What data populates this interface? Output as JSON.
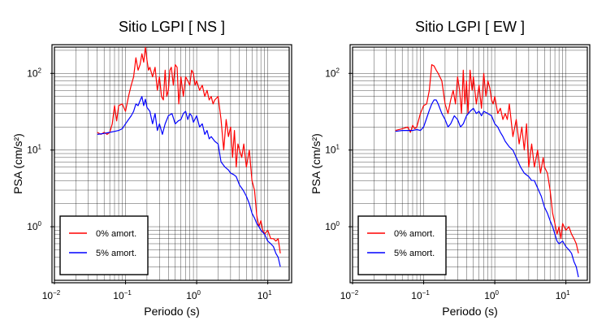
{
  "chart_data": [
    {
      "type": "line",
      "title": "Sitio LGPI [ NS ]",
      "xlabel": "Periodo (s)",
      "ylabel": "PSA (cm/s²)",
      "x_scale": "log",
      "y_scale": "log",
      "xlim": [
        0.01,
        20
      ],
      "ylim": [
        0.2,
        220
      ],
      "x_ticks": [
        {
          "label": "10",
          "exp": "−2"
        },
        {
          "label": "10",
          "exp": "−1"
        },
        {
          "label": "10",
          "exp": "0"
        },
        {
          "label": "10",
          "exp": "1"
        }
      ],
      "y_ticks": [
        {
          "label": "10",
          "exp": "0"
        },
        {
          "label": "10",
          "exp": "1"
        },
        {
          "label": "10",
          "exp": "2"
        }
      ],
      "grid": true,
      "legend_position": "bottom-left",
      "series": [
        {
          "name": "0% amort.",
          "color": "#ff0000",
          "x": [
            0.04,
            0.045,
            0.05,
            0.055,
            0.06,
            0.065,
            0.07,
            0.075,
            0.08,
            0.09,
            0.1,
            0.11,
            0.12,
            0.13,
            0.14,
            0.15,
            0.16,
            0.17,
            0.18,
            0.19,
            0.2,
            0.21,
            0.22,
            0.24,
            0.26,
            0.28,
            0.3,
            0.32,
            0.34,
            0.36,
            0.38,
            0.4,
            0.42,
            0.44,
            0.47,
            0.5,
            0.53,
            0.56,
            0.6,
            0.65,
            0.7,
            0.75,
            0.8,
            0.85,
            0.9,
            0.95,
            1.0,
            1.1,
            1.2,
            1.3,
            1.4,
            1.5,
            1.6,
            1.7,
            1.8,
            2.0,
            2.2,
            2.4,
            2.6,
            2.8,
            3.0,
            3.2,
            3.4,
            3.6,
            3.8,
            4.0,
            4.3,
            4.6,
            5.0,
            5.5,
            6.0,
            6.5,
            7.0,
            7.5,
            8.0,
            8.5,
            9.0,
            10.0,
            11.0,
            12.0,
            13.0,
            14.0,
            15.0
          ],
          "y": [
            17,
            16,
            17,
            16,
            17,
            22,
            38,
            24,
            38,
            40,
            32,
            50,
            70,
            90,
            160,
            110,
            130,
            180,
            140,
            220,
            150,
            110,
            120,
            90,
            120,
            60,
            90,
            50,
            45,
            110,
            50,
            60,
            110,
            120,
            70,
            130,
            120,
            40,
            90,
            50,
            90,
            80,
            70,
            110,
            100,
            70,
            80,
            60,
            70,
            50,
            60,
            45,
            50,
            40,
            45,
            50,
            25,
            10,
            25,
            15,
            20,
            8,
            18,
            6,
            12,
            10,
            8,
            12,
            6,
            10,
            4,
            3,
            1.4,
            1.0,
            1.2,
            0.9,
            0.8,
            0.9,
            0.7,
            0.7,
            0.65,
            0.7,
            0.45
          ]
        },
        {
          "name": "5% amort.",
          "color": "#0000ff",
          "x": [
            0.04,
            0.05,
            0.06,
            0.07,
            0.08,
            0.09,
            0.1,
            0.11,
            0.12,
            0.13,
            0.14,
            0.15,
            0.16,
            0.17,
            0.18,
            0.19,
            0.2,
            0.22,
            0.24,
            0.26,
            0.28,
            0.3,
            0.33,
            0.36,
            0.4,
            0.45,
            0.5,
            0.55,
            0.6,
            0.65,
            0.7,
            0.75,
            0.8,
            0.85,
            0.9,
            1.0,
            1.1,
            1.2,
            1.3,
            1.4,
            1.5,
            1.6,
            1.8,
            2.0,
            2.2,
            2.5,
            2.8,
            3.0,
            3.3,
            3.6,
            4.0,
            4.5,
            5.0,
            5.5,
            6.0,
            6.5,
            7.0,
            7.5,
            8.0,
            9.0,
            10.0,
            11.0,
            12.0,
            13.0,
            14.0,
            15.0
          ],
          "y": [
            16,
            16.5,
            17,
            17.5,
            18,
            19,
            22,
            25,
            28,
            32,
            40,
            38,
            44,
            50,
            38,
            46,
            36,
            32,
            22,
            30,
            18,
            22,
            16,
            22,
            28,
            30,
            22,
            24,
            25,
            30,
            32,
            25,
            30,
            28,
            23,
            28,
            20,
            22,
            16,
            18,
            14,
            15,
            13,
            12,
            7,
            6,
            5.5,
            5,
            4.8,
            4.5,
            3.5,
            3,
            2.5,
            2,
            1.5,
            1.3,
            1.1,
            1.0,
            0.9,
            0.8,
            0.65,
            0.6,
            0.55,
            0.45,
            0.4,
            0.3
          ]
        }
      ]
    },
    {
      "type": "line",
      "title": "Sitio LGPI [ EW ]",
      "xlabel": "Periodo (s)",
      "ylabel": "PSA (cm/s²)",
      "x_scale": "log",
      "y_scale": "log",
      "xlim": [
        0.01,
        20
      ],
      "ylim": [
        0.2,
        220
      ],
      "x_ticks": [
        {
          "label": "10",
          "exp": "−2"
        },
        {
          "label": "10",
          "exp": "−1"
        },
        {
          "label": "10",
          "exp": "0"
        },
        {
          "label": "10",
          "exp": "1"
        }
      ],
      "y_ticks": [
        {
          "label": "10",
          "exp": "0"
        },
        {
          "label": "10",
          "exp": "1"
        },
        {
          "label": "10",
          "exp": "2"
        }
      ],
      "grid": true,
      "legend_position": "bottom-left",
      "series": [
        {
          "name": "0% amort.",
          "color": "#ff0000",
          "x": [
            0.04,
            0.05,
            0.06,
            0.065,
            0.07,
            0.075,
            0.08,
            0.09,
            0.1,
            0.11,
            0.12,
            0.13,
            0.14,
            0.15,
            0.16,
            0.18,
            0.2,
            0.22,
            0.24,
            0.26,
            0.28,
            0.3,
            0.32,
            0.34,
            0.36,
            0.38,
            0.4,
            0.42,
            0.45,
            0.48,
            0.5,
            0.55,
            0.6,
            0.65,
            0.7,
            0.75,
            0.8,
            0.85,
            0.9,
            0.95,
            1.0,
            1.1,
            1.2,
            1.3,
            1.4,
            1.5,
            1.6,
            1.8,
            2.0,
            2.2,
            2.4,
            2.6,
            2.8,
            3.0,
            3.3,
            3.6,
            4.0,
            4.4,
            4.8,
            5.0,
            5.5,
            6.0,
            6.5,
            7.0,
            7.5,
            8.0,
            8.5,
            9.0,
            10.0,
            11.0,
            12.0,
            13.0,
            14.0,
            15.0
          ],
          "y": [
            18,
            19,
            20,
            17,
            21,
            19,
            20,
            30,
            38,
            40,
            60,
            130,
            125,
            110,
            100,
            80,
            40,
            30,
            45,
            60,
            40,
            90,
            60,
            30,
            110,
            40,
            80,
            30,
            110,
            60,
            90,
            40,
            70,
            35,
            100,
            50,
            80,
            65,
            45,
            40,
            50,
            30,
            35,
            25,
            30,
            25,
            40,
            15,
            25,
            12,
            20,
            10,
            22,
            6,
            12,
            6,
            10,
            5,
            8,
            6,
            5,
            3,
            1.5,
            1.1,
            0.8,
            1.0,
            0.7,
            1.1,
            0.9,
            1.0,
            0.8,
            0.7,
            0.6,
            0.45
          ]
        },
        {
          "name": "5% amort.",
          "color": "#0000ff",
          "x": [
            0.04,
            0.05,
            0.06,
            0.07,
            0.08,
            0.09,
            0.1,
            0.11,
            0.12,
            0.13,
            0.14,
            0.15,
            0.16,
            0.18,
            0.2,
            0.22,
            0.24,
            0.27,
            0.3,
            0.33,
            0.36,
            0.4,
            0.45,
            0.5,
            0.55,
            0.6,
            0.65,
            0.7,
            0.8,
            0.9,
            1.0,
            1.1,
            1.2,
            1.3,
            1.4,
            1.6,
            1.8,
            2.0,
            2.3,
            2.6,
            3.0,
            3.3,
            3.6,
            4.0,
            4.5,
            5.0,
            5.5,
            6.0,
            6.5,
            7.0,
            7.5,
            8.0,
            9.0,
            10.0,
            11.0,
            12.0,
            13.0,
            14.0,
            15.0
          ],
          "y": [
            17.5,
            18,
            18,
            18,
            18.5,
            18,
            20,
            26,
            33,
            40,
            45,
            45,
            40,
            30,
            25,
            20,
            22,
            28,
            25,
            20,
            22,
            28,
            32,
            35,
            30,
            32,
            28,
            32,
            30,
            28,
            22,
            20,
            17,
            15,
            13,
            11,
            10,
            8,
            6,
            5,
            4.5,
            4,
            4,
            3.2,
            2.5,
            1.8,
            1.5,
            1.2,
            1.0,
            0.8,
            0.65,
            0.6,
            0.65,
            0.55,
            0.5,
            0.45,
            0.35,
            0.3,
            0.22
          ]
        }
      ]
    }
  ]
}
